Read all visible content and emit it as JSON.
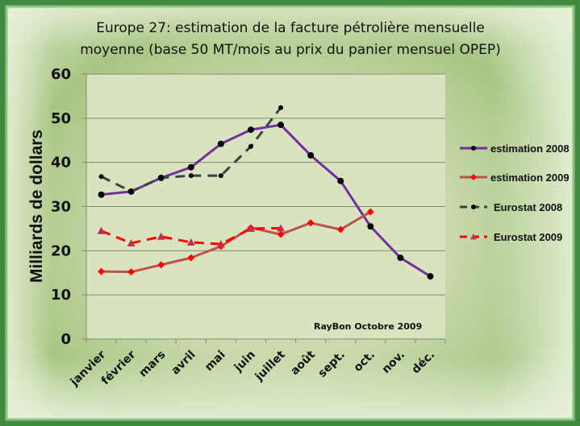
{
  "chart_data": {
    "type": "line",
    "title": "Europe 27: estimation de la facture pétrolière mensuelle moyenne (base 50 MT/mois au prix du panier mensuel OPEP)",
    "title_lines": [
      "Europe 27: estimation  de la facture pétrolière mensuelle",
      "moyenne (base 50 MT/mois au prix du panier mensuel OPEP)"
    ],
    "xlabel": "",
    "ylabel": "Milliards de dollars",
    "ylim": [
      0,
      60
    ],
    "yticks": [
      0,
      10,
      20,
      30,
      40,
      50,
      60
    ],
    "grid": true,
    "legend_position": "right",
    "annotation": "RayBon Octobre 2009",
    "categories": [
      "janvier",
      "février",
      "mars",
      "avril",
      "mai",
      "juin",
      "juillet",
      "août",
      "sept.",
      "oct.",
      "nov.",
      "déc."
    ],
    "series": [
      {
        "name": "estimation 2008",
        "color": "#7030a0",
        "marker_color": "#000000",
        "marker": "circle",
        "dash": false,
        "values": [
          32.7,
          33.4,
          36.5,
          38.9,
          44.2,
          47.4,
          48.5,
          41.6,
          35.8,
          25.5,
          18.4,
          14.2
        ]
      },
      {
        "name": "estimation 2009",
        "color": "#c0504d",
        "marker_color": "#ff0000",
        "marker": "diamond",
        "dash": false,
        "values": [
          15.3,
          15.2,
          16.8,
          18.4,
          21.0,
          25.2,
          23.7,
          26.3,
          24.8,
          28.8,
          null,
          null
        ]
      },
      {
        "name": "Eurostat 2008",
        "color": "#404040",
        "marker_color": "#000000",
        "marker": "circle-small",
        "dash": true,
        "values": [
          36.8,
          33.4,
          36.5,
          37.0,
          37.0,
          43.6,
          52.4,
          null,
          null,
          null,
          null,
          null
        ]
      },
      {
        "name": "Eurostat 2009",
        "color": "#ff0000",
        "marker_color": "#c0304d",
        "marker": "triangle",
        "dash": true,
        "values": [
          24.5,
          21.7,
          23.2,
          21.9,
          21.5,
          25.0,
          25.1,
          null,
          null,
          null,
          null,
          null
        ]
      }
    ]
  }
}
